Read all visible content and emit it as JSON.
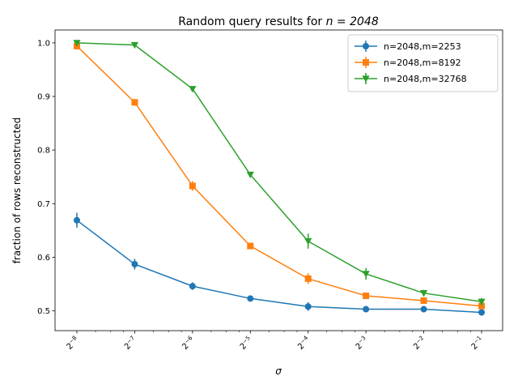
{
  "chart_data": {
    "type": "line",
    "title": "Random query results for n = 2048",
    "title_prefix": "Random query results for ",
    "title_math": "n = 2048",
    "xlabel": "σ",
    "ylabel": "fraction of rows reconstructed",
    "x_scale": "log2",
    "x": [
      0.00390625,
      0.0078125,
      0.015625,
      0.03125,
      0.0625,
      0.125,
      0.25,
      0.5
    ],
    "x_tick_labels": [
      {
        "base": "2",
        "exp": "−8"
      },
      {
        "base": "2",
        "exp": "−7"
      },
      {
        "base": "2",
        "exp": "−6"
      },
      {
        "base": "2",
        "exp": "−5"
      },
      {
        "base": "2",
        "exp": "−4"
      },
      {
        "base": "2",
        "exp": "−3"
      },
      {
        "base": "2",
        "exp": "−2"
      },
      {
        "base": "2",
        "exp": "−1"
      }
    ],
    "x_tick_rotation": "45 degrees",
    "y_ticks": [
      "0.5",
      "0.6",
      "0.7",
      "0.8",
      "0.9",
      "1.0"
    ],
    "y_tick_values": [
      0.5,
      0.6,
      0.7,
      0.8,
      0.9,
      1.0
    ],
    "ylim": [
      0.463,
      1.024
    ],
    "grid": false,
    "legend_position": "top-right",
    "series": [
      {
        "name": "n=2048,m=2253",
        "color": "#1f77b4",
        "marker": "circle",
        "values": [
          0.669,
          0.587,
          0.546,
          0.523,
          0.508,
          0.503,
          0.503,
          0.497
        ],
        "errors": [
          0.014,
          0.01,
          0.007,
          0.005,
          0.008,
          0.005,
          0.004,
          0.004
        ]
      },
      {
        "name": "n=2048,m=8192",
        "color": "#ff7f0e",
        "marker": "square",
        "values": [
          0.994,
          0.889,
          0.733,
          0.621,
          0.56,
          0.528,
          0.519,
          0.509
        ],
        "errors": [
          0.006,
          0.006,
          0.009,
          0.006,
          0.01,
          0.006,
          0.005,
          0.004
        ]
      },
      {
        "name": "n=2048,m=32768",
        "color": "#2ca02c",
        "marker": "triangle-down",
        "values": [
          1.0,
          0.996,
          0.914,
          0.754,
          0.63,
          0.569,
          0.533,
          0.517
        ],
        "errors": [
          0.001,
          0.002,
          0.004,
          0.005,
          0.014,
          0.011,
          0.006,
          0.007
        ]
      }
    ]
  }
}
